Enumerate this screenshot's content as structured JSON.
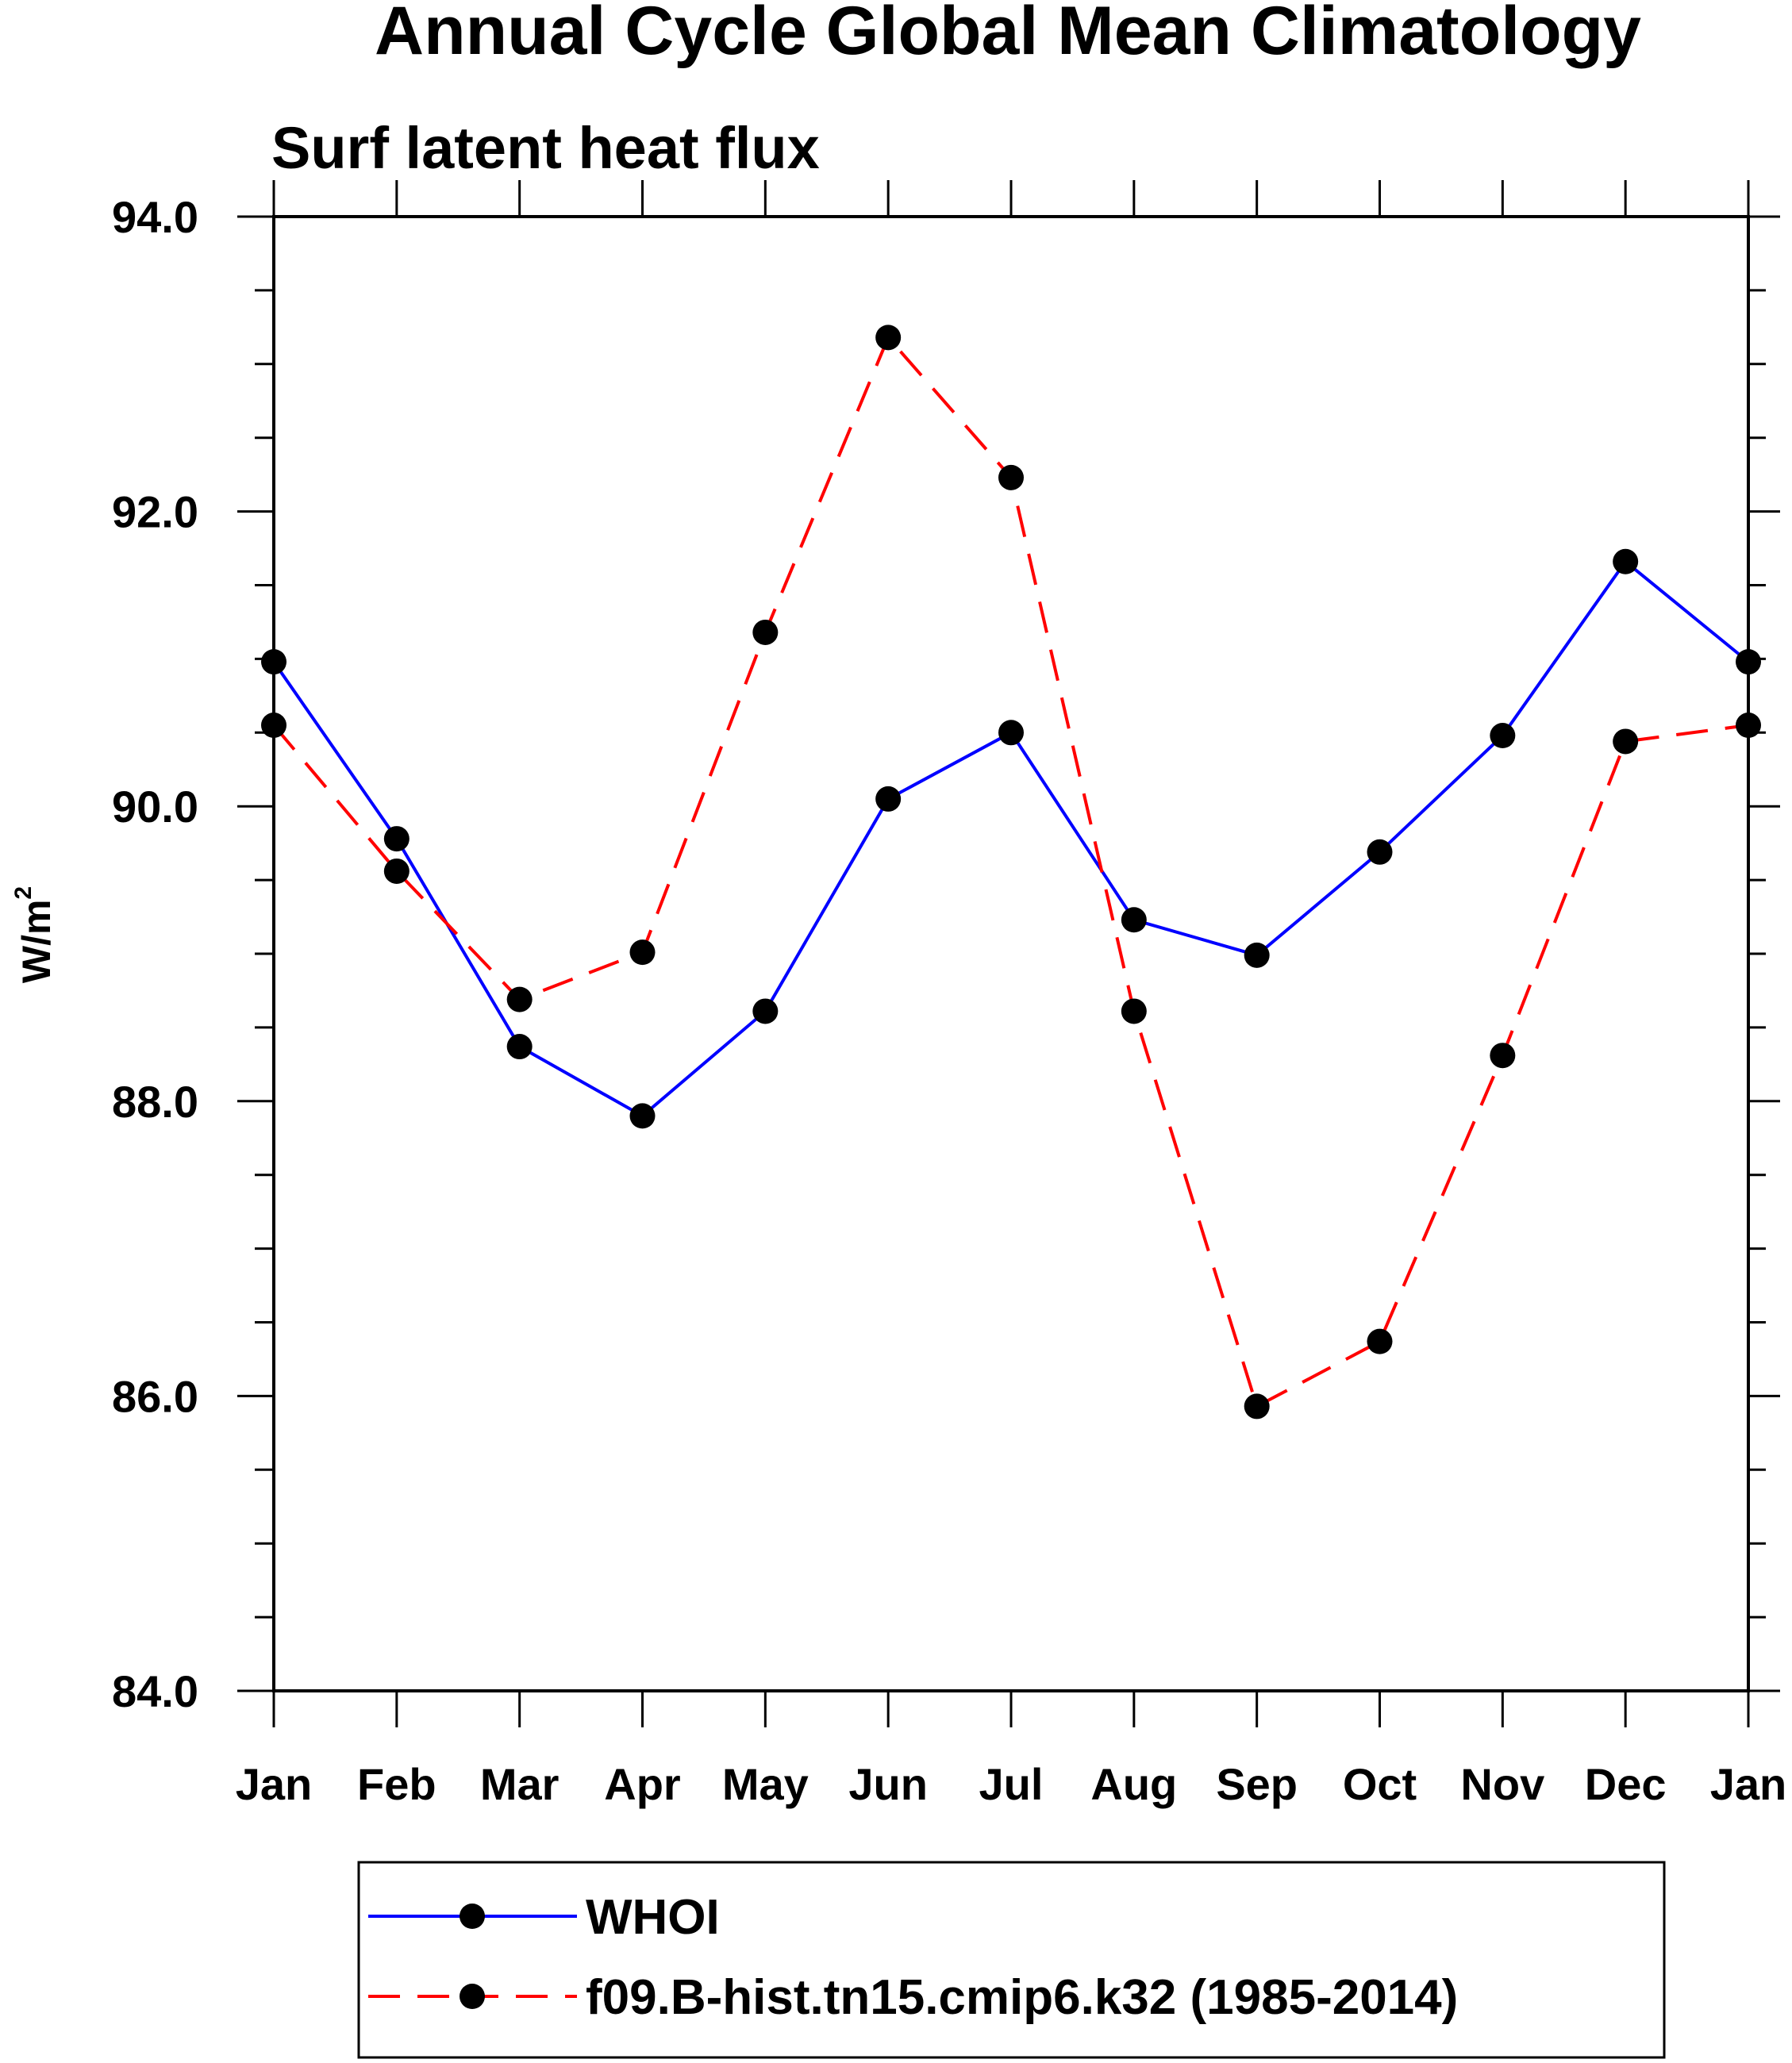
{
  "chart_data": {
    "type": "line",
    "title": "Annual Cycle Global Mean Climatology",
    "subtitle": "Surf latent heat flux",
    "xlabel": "",
    "ylabel": "W/m",
    "ylabel_superscript": "2",
    "ylim": [
      84.0,
      94.0
    ],
    "yticks": [
      "84.0",
      "86.0",
      "88.0",
      "90.0",
      "92.0",
      "94.0"
    ],
    "grid": false,
    "legend_position": "bottom",
    "categories": [
      "Jan",
      "Feb",
      "Mar",
      "Apr",
      "May",
      "Jun",
      "Jul",
      "Aug",
      "Sep",
      "Oct",
      "Nov",
      "Dec",
      "Jan"
    ],
    "series": [
      {
        "name": "WHOI",
        "color": "#0000ff",
        "line_style": "solid",
        "marker": "filled-circle",
        "values": [
          90.98,
          89.78,
          88.37,
          87.9,
          88.61,
          90.05,
          90.5,
          89.23,
          88.99,
          89.69,
          90.48,
          91.66,
          90.98
        ]
      },
      {
        "name": "f09.B-hist.tn15.cmip6.k32 (1985-2014)",
        "color": "#ff0000",
        "line_style": "dashed",
        "marker": "filled-circle",
        "values": [
          90.55,
          89.56,
          88.69,
          89.01,
          91.18,
          93.18,
          92.23,
          88.61,
          85.93,
          86.37,
          88.31,
          90.44,
          90.55
        ]
      }
    ]
  }
}
